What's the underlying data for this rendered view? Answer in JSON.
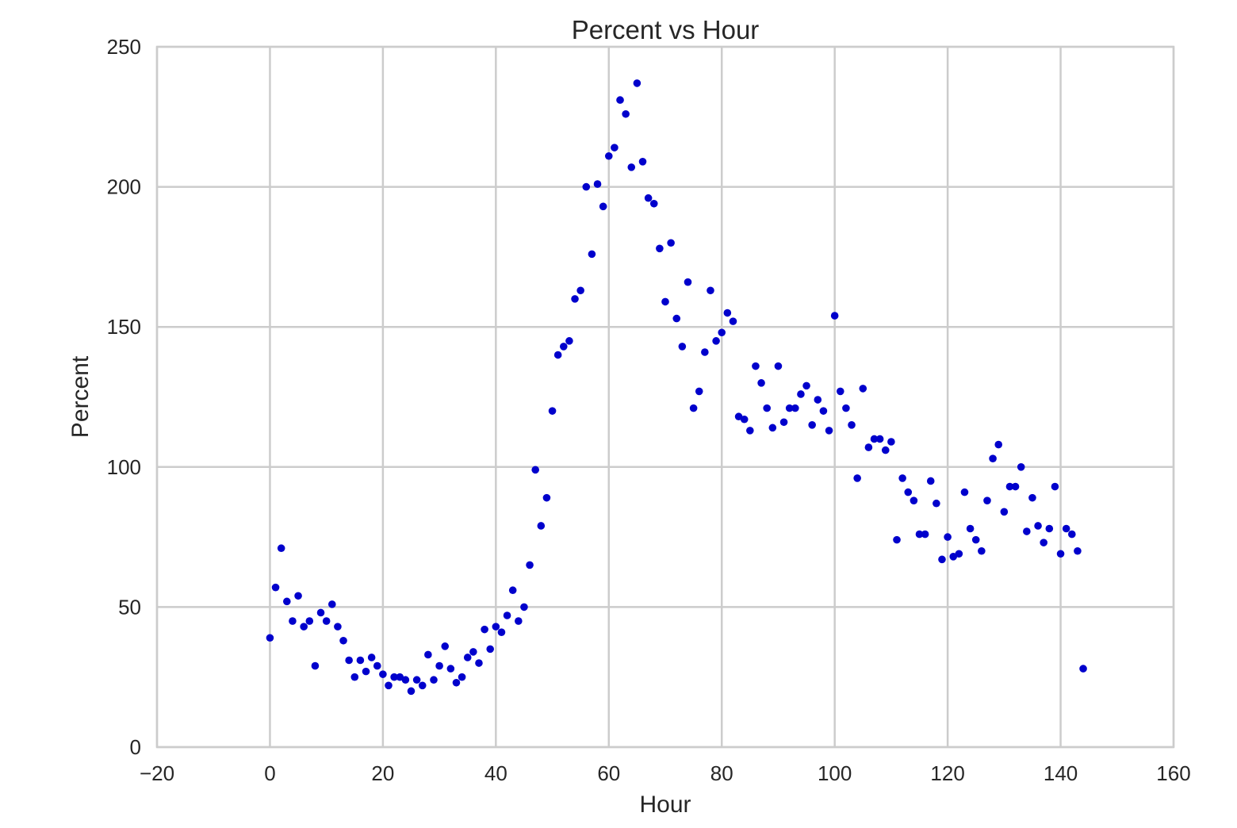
{
  "chart_data": {
    "type": "scatter",
    "title": "Percent vs Hour",
    "xlabel": "Hour",
    "ylabel": "Percent",
    "xlim": [
      -20,
      160
    ],
    "ylim": [
      0,
      250
    ],
    "xticks": [
      -20,
      0,
      20,
      40,
      60,
      80,
      100,
      120,
      140,
      160
    ],
    "yticks": [
      0,
      50,
      100,
      150,
      200,
      250
    ],
    "xtick_labels": [
      "−20",
      "0",
      "20",
      "40",
      "60",
      "80",
      "100",
      "120",
      "140",
      "160"
    ],
    "ytick_labels": [
      "0",
      "50",
      "100",
      "150",
      "200",
      "250"
    ],
    "grid": true,
    "marker_color": "#0000cc",
    "series": [
      {
        "x": [
          0,
          1,
          2,
          3,
          4,
          5,
          6,
          7,
          8,
          9,
          10,
          11,
          12,
          13,
          14,
          15,
          16,
          17,
          18,
          19,
          20,
          21,
          22,
          23,
          24,
          25,
          26,
          27,
          28,
          29,
          30,
          31,
          32,
          33,
          34,
          35,
          36,
          37,
          38,
          39,
          40,
          41,
          42,
          43,
          44,
          45,
          46,
          47,
          48,
          49,
          50,
          51,
          52,
          53,
          54,
          55,
          56,
          57,
          58,
          59,
          60,
          61,
          62,
          63,
          64,
          65,
          66,
          67,
          68,
          69,
          70,
          71,
          72,
          73,
          74,
          75,
          76,
          77,
          78,
          79,
          80,
          81,
          82,
          83,
          84,
          85,
          86,
          87,
          88,
          89,
          90,
          91,
          92,
          93,
          94,
          95,
          96,
          97,
          98,
          99,
          100,
          101,
          102,
          103,
          104,
          105,
          106,
          107,
          108,
          109,
          110,
          111,
          112,
          113,
          114,
          115,
          116,
          117,
          118,
          119,
          120,
          121,
          122,
          123,
          124,
          125,
          126,
          127,
          128,
          129,
          130,
          131,
          132,
          133,
          134,
          135,
          136,
          137,
          138,
          139,
          140,
          141,
          142,
          143,
          144
        ],
        "y": [
          39,
          57,
          71,
          52,
          45,
          54,
          43,
          45,
          29,
          48,
          45,
          51,
          43,
          38,
          31,
          25,
          31,
          27,
          32,
          29,
          26,
          22,
          25,
          25,
          24,
          20,
          24,
          22,
          33,
          24,
          29,
          36,
          28,
          23,
          25,
          32,
          34,
          30,
          42,
          35,
          43,
          41,
          47,
          56,
          45,
          50,
          65,
          99,
          79,
          89,
          120,
          140,
          143,
          145,
          160,
          163,
          200,
          176,
          201,
          193,
          211,
          214,
          231,
          226,
          207,
          237,
          209,
          196,
          194,
          178,
          159,
          180,
          153,
          143,
          166,
          121,
          127,
          141,
          163,
          145,
          148,
          155,
          152,
          118,
          117,
          113,
          136,
          130,
          121,
          114,
          136,
          116,
          121,
          121,
          126,
          129,
          115,
          124,
          120,
          113,
          154,
          127,
          121,
          115,
          96,
          128,
          107,
          110,
          110,
          106,
          109,
          74,
          96,
          91,
          88,
          76,
          76,
          95,
          87,
          67,
          75,
          68,
          69,
          91,
          78,
          74,
          70,
          88,
          103,
          108,
          84,
          93,
          93,
          100,
          77,
          89,
          79,
          73,
          78,
          93,
          69,
          78,
          76,
          70,
          28
        ]
      }
    ]
  }
}
